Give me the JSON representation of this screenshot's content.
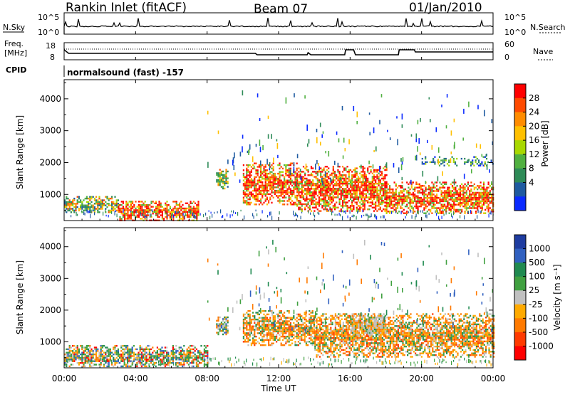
{
  "header": {
    "station_title": "Rankin Inlet (fitACF)",
    "beam_label": "Beam 07",
    "date_label": "01/Jan/2010"
  },
  "status_panel": {
    "nsky_label": "N.Sky",
    "nsky_top": "10^5",
    "nsky_bottom": "10^0",
    "nsearch_label": "N.Search",
    "nsearch_top": "10^5",
    "nsearch_bottom": "10^0",
    "freq_label_line1": "Freq.",
    "freq_label_line2": "[MHz]",
    "freq_top": "18",
    "freq_bottom": "8",
    "nave_label": "Nave",
    "nave_top": "60",
    "nave_bottom": "0",
    "cpid_label": "CPID",
    "cpid_text": "normalsound (fast) -157"
  },
  "x_axis": {
    "label": "Time UT",
    "ticks": [
      "00:00",
      "04:00",
      "08:00",
      "12:00",
      "16:00",
      "20:00",
      "00:00"
    ]
  },
  "power_colorbar": {
    "label": "Power [dB]",
    "ticks": [
      "28",
      "24",
      "20",
      "16",
      "12",
      "8",
      "4"
    ],
    "colors": [
      "#ff0000",
      "#ff4a00",
      "#ff8c00",
      "#ffc000",
      "#a8d800",
      "#50b040",
      "#2e8b57",
      "#1e5aa0",
      "#0a2aff"
    ]
  },
  "velocity_colorbar": {
    "label": "Velocity [m s⁻¹]",
    "ticks": [
      "1000",
      "500",
      "100",
      "25",
      "-25",
      "-100",
      "-500",
      "-1000"
    ],
    "colors": [
      "#1e3ca0",
      "#3060c0",
      "#208a50",
      "#40a040",
      "#c0c0c0",
      "#ffaa00",
      "#ff7a00",
      "#ff3a00",
      "#ff0000"
    ]
  },
  "chart_data": [
    {
      "type": "heatmap",
      "title": "Power",
      "xlabel": "Time UT",
      "ylabel": "Slant Range [km]",
      "xlim": [
        0,
        24
      ],
      "ylim": [
        180,
        4600
      ],
      "yticks": [
        1000,
        2000,
        3000,
        4000
      ],
      "colorbar_label": "Power [dB]",
      "colorbar_range": [
        0,
        32
      ],
      "regions": [
        {
          "t_start": 0.0,
          "t_end": 3.0,
          "r_low": 450,
          "r_high": 950,
          "level": "medium"
        },
        {
          "t_start": 3.0,
          "t_end": 7.5,
          "r_low": 200,
          "r_high": 800,
          "level": "high"
        },
        {
          "t_start": 8.5,
          "t_end": 9.2,
          "r_low": 1200,
          "r_high": 1800,
          "level": "medium"
        },
        {
          "t_start": 10.0,
          "t_end": 13.0,
          "r_low": 700,
          "r_high": 2000,
          "level": "high"
        },
        {
          "t_start": 13.0,
          "t_end": 18.0,
          "r_low": 500,
          "r_high": 1900,
          "level": "high"
        },
        {
          "t_start": 18.0,
          "t_end": 24.0,
          "r_low": 400,
          "r_high": 1400,
          "level": "high"
        },
        {
          "t_start": 20.0,
          "t_end": 24.0,
          "r_low": 1900,
          "r_high": 2200,
          "level": "low"
        }
      ]
    },
    {
      "type": "heatmap",
      "title": "Velocity",
      "xlabel": "Time UT",
      "ylabel": "Slant Range [km]",
      "xlim": [
        0,
        24
      ],
      "ylim": [
        180,
        4600
      ],
      "yticks": [
        1000,
        2000,
        3000,
        4000
      ],
      "colorbar_label": "Velocity [m s⁻¹]",
      "colorbar_ticks": [
        1000,
        500,
        100,
        25,
        -25,
        -100,
        -500,
        -1000
      ],
      "regions": [
        {
          "t_start": 0.0,
          "t_end": 8.0,
          "r_low": 200,
          "r_high": 900,
          "level": "low_mixed"
        },
        {
          "t_start": 8.5,
          "t_end": 9.2,
          "r_low": 1200,
          "r_high": 1800,
          "level": "mixed"
        },
        {
          "t_start": 10.0,
          "t_end": 14.0,
          "r_low": 900,
          "r_high": 2000,
          "level": "negative_medium"
        },
        {
          "t_start": 14.0,
          "t_end": 24.0,
          "r_low": 500,
          "r_high": 1900,
          "level": "negative_medium"
        },
        {
          "t_start": 16.0,
          "t_end": 18.0,
          "r_low": 1200,
          "r_high": 1900,
          "level": "near_zero"
        }
      ]
    }
  ]
}
